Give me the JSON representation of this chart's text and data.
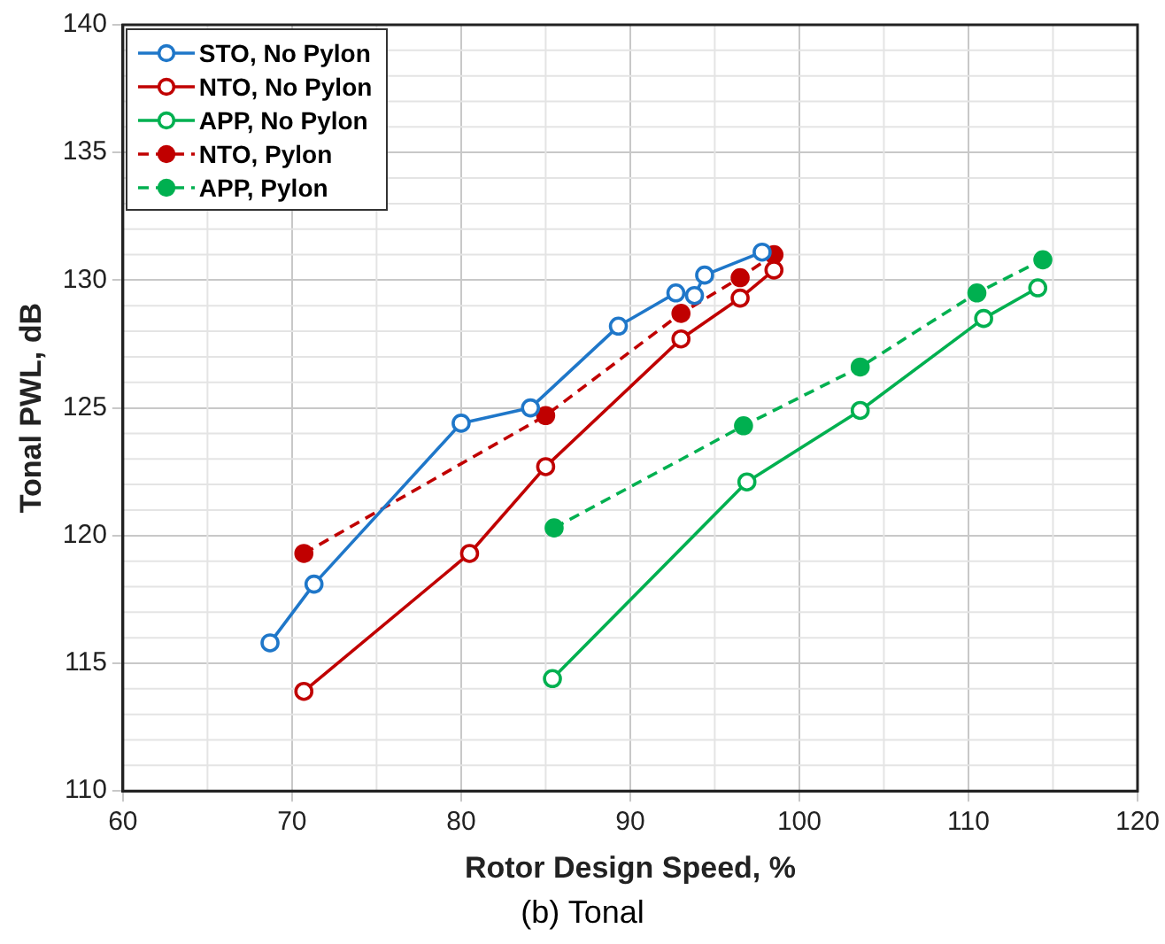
{
  "chart_data": {
    "type": "line",
    "xlabel": "Rotor Design Speed, %",
    "ylabel": "Tonal PWL, dB",
    "annotations": [
      "(b) Tonal"
    ],
    "xlim": [
      60,
      120
    ],
    "xticks": [
      60,
      70,
      80,
      90,
      100,
      110,
      120
    ],
    "ylim": [
      110,
      140
    ],
    "yticks": [
      110,
      115,
      120,
      125,
      130,
      135,
      140
    ],
    "grid": true,
    "legend": "top left",
    "marker": "circle",
    "series": [
      {
        "name": "STO, No Pylon",
        "color": "#1f77c9",
        "line_style": "solid",
        "x": [
          68.7,
          71.3,
          80,
          84.1,
          89.3,
          92.7,
          93.8,
          94.4,
          97.8
        ],
        "values": [
          115.8,
          118.1,
          124.4,
          125.0,
          128.2,
          129.5,
          129.4,
          130.2,
          131.1
        ]
      },
      {
        "name": "NTO, No Pylon",
        "color": "#c00000",
        "line_style": "solid",
        "x": [
          70.7,
          80.5,
          85.0,
          93.0,
          96.5,
          98.5
        ],
        "values": [
          113.9,
          119.3,
          122.7,
          127.7,
          129.3,
          130.4
        ]
      },
      {
        "name": "APP, No Pylon",
        "color": "#00b050",
        "line_style": "solid",
        "x": [
          85.4,
          96.9,
          103.6,
          110.9,
          114.1
        ],
        "values": [
          114.4,
          122.1,
          124.9,
          128.5,
          129.7
        ]
      },
      {
        "name": "NTO, Pylon",
        "color": "#c00000",
        "line_style": "dashed",
        "x": [
          70.7,
          85.0,
          93.0,
          96.5,
          98.5
        ],
        "values": [
          119.3,
          124.7,
          128.7,
          130.1,
          131.0
        ]
      },
      {
        "name": "APP, Pylon",
        "color": "#00b050",
        "line_style": "dashed",
        "x": [
          85.5,
          96.7,
          103.6,
          110.5,
          114.4
        ],
        "values": [
          120.3,
          124.3,
          126.6,
          129.5,
          130.8
        ]
      }
    ]
  }
}
